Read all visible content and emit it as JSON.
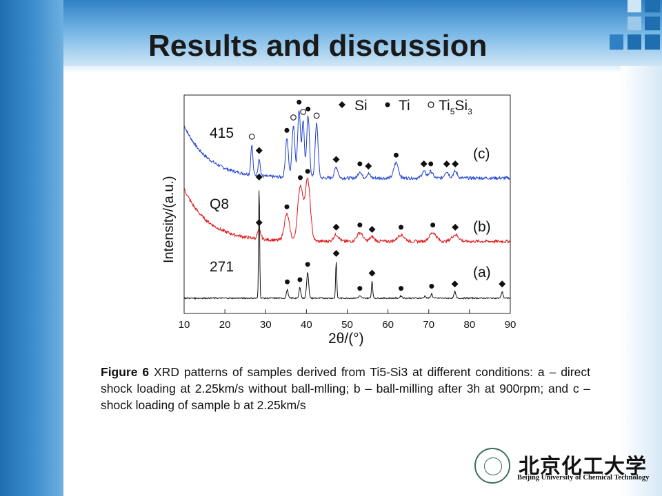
{
  "slide": {
    "title": "Results and discussion",
    "colors": {
      "accent": "#2f80c4",
      "square_dark": "#1f6fb0",
      "square_light": "#9cc8ea"
    }
  },
  "figure": {
    "ylabel": "Intensity/(a.u.)",
    "xlabel": "2θ/(°)",
    "legend": [
      {
        "marker": "diamond",
        "label": "Si"
      },
      {
        "marker": "dot",
        "label": "Ti"
      },
      {
        "marker": "circle",
        "label": "Ti5Si3"
      }
    ],
    "curve_labels": [
      "415",
      "Q8",
      "271"
    ],
    "curve_tags": [
      "(c)",
      "(b)",
      "(a)"
    ]
  },
  "chart_data": {
    "type": "line",
    "xlabel": "2θ/(°)",
    "ylabel": "Intensity/(a.u.)",
    "xlim": [
      10,
      90
    ],
    "x_ticks": [
      10,
      20,
      30,
      40,
      50,
      60,
      70,
      80,
      90
    ],
    "series": [
      {
        "name": "(c)",
        "sample_label": "415",
        "color": "#1f3fd0",
        "baseline": 0.62,
        "start_offset": 0.24,
        "peaks": [
          {
            "x": 26.6,
            "h": 0.14,
            "w": 0.35
          },
          {
            "x": 28.4,
            "h": 0.08,
            "w": 0.35
          },
          {
            "x": 35.2,
            "h": 0.18,
            "w": 0.5
          },
          {
            "x": 36.8,
            "h": 0.24,
            "w": 0.5
          },
          {
            "x": 38.2,
            "h": 0.31,
            "w": 0.5
          },
          {
            "x": 39.2,
            "h": 0.26,
            "w": 0.4
          },
          {
            "x": 40.4,
            "h": 0.28,
            "w": 0.5
          },
          {
            "x": 42.5,
            "h": 0.25,
            "w": 0.5
          },
          {
            "x": 47.3,
            "h": 0.05,
            "w": 0.6
          },
          {
            "x": 53.1,
            "h": 0.03,
            "w": 0.6
          },
          {
            "x": 55.2,
            "h": 0.02,
            "w": 0.6
          },
          {
            "x": 62.0,
            "h": 0.07,
            "w": 0.8
          },
          {
            "x": 68.8,
            "h": 0.03,
            "w": 0.7
          },
          {
            "x": 70.5,
            "h": 0.03,
            "w": 0.7
          },
          {
            "x": 74.4,
            "h": 0.03,
            "w": 0.7
          },
          {
            "x": 76.5,
            "h": 0.03,
            "w": 0.7
          }
        ],
        "markers": [
          {
            "x": 26.6,
            "type": "circle"
          },
          {
            "x": 28.4,
            "type": "diamond"
          },
          {
            "x": 35.2,
            "type": "dot"
          },
          {
            "x": 36.8,
            "type": "circle"
          },
          {
            "x": 38.2,
            "type": "dot"
          },
          {
            "x": 39.2,
            "type": "circle"
          },
          {
            "x": 40.4,
            "type": "dot"
          },
          {
            "x": 42.5,
            "type": "circle"
          },
          {
            "x": 47.3,
            "type": "diamond"
          },
          {
            "x": 53.1,
            "type": "dot"
          },
          {
            "x": 55.2,
            "type": "diamond"
          },
          {
            "x": 62.0,
            "type": "dot"
          },
          {
            "x": 68.8,
            "type": "diamond"
          },
          {
            "x": 70.5,
            "type": "dot"
          },
          {
            "x": 74.4,
            "type": "diamond"
          },
          {
            "x": 76.5,
            "type": "diamond"
          }
        ]
      },
      {
        "name": "(b)",
        "sample_label": "Q8",
        "color": "#e01414",
        "baseline": 0.33,
        "start_offset": 0.24,
        "peaks": [
          {
            "x": 28.4,
            "h": 0.04,
            "w": 0.6
          },
          {
            "x": 35.2,
            "h": 0.12,
            "w": 0.9
          },
          {
            "x": 38.5,
            "h": 0.25,
            "w": 0.9
          },
          {
            "x": 40.3,
            "h": 0.28,
            "w": 0.9
          },
          {
            "x": 47.3,
            "h": 0.03,
            "w": 0.9
          },
          {
            "x": 53.1,
            "h": 0.04,
            "w": 1.0
          },
          {
            "x": 56.1,
            "h": 0.02,
            "w": 0.8
          },
          {
            "x": 63.2,
            "h": 0.03,
            "w": 1.2
          },
          {
            "x": 71.0,
            "h": 0.04,
            "w": 1.2
          },
          {
            "x": 76.5,
            "h": 0.03,
            "w": 1.2
          }
        ],
        "markers": [
          {
            "x": 28.4,
            "type": "diamond"
          },
          {
            "x": 35.2,
            "type": "dot"
          },
          {
            "x": 38.5,
            "type": "dot"
          },
          {
            "x": 40.3,
            "type": "dot"
          },
          {
            "x": 47.3,
            "type": "diamond"
          },
          {
            "x": 53.1,
            "type": "dot"
          },
          {
            "x": 56.1,
            "type": "diamond"
          },
          {
            "x": 63.2,
            "type": "dot"
          },
          {
            "x": 71.0,
            "type": "dot"
          },
          {
            "x": 76.5,
            "type": "diamond"
          }
        ]
      },
      {
        "name": "(a)",
        "sample_label": "271",
        "color": "#111111",
        "baseline": 0.07,
        "start_offset": 0.0,
        "peaks": [
          {
            "x": 28.4,
            "h": 0.52,
            "w": 0.18
          },
          {
            "x": 35.3,
            "h": 0.04,
            "w": 0.3
          },
          {
            "x": 38.4,
            "h": 0.05,
            "w": 0.3
          },
          {
            "x": 40.3,
            "h": 0.12,
            "w": 0.35
          },
          {
            "x": 47.3,
            "h": 0.17,
            "w": 0.2
          },
          {
            "x": 53.1,
            "h": 0.01,
            "w": 0.4
          },
          {
            "x": 56.1,
            "h": 0.08,
            "w": 0.22
          },
          {
            "x": 63.2,
            "h": 0.01,
            "w": 0.4
          },
          {
            "x": 69.1,
            "h": 0.01,
            "w": 0.3
          },
          {
            "x": 70.7,
            "h": 0.02,
            "w": 0.3
          },
          {
            "x": 76.4,
            "h": 0.03,
            "w": 0.3
          },
          {
            "x": 88.0,
            "h": 0.03,
            "w": 0.3
          }
        ],
        "markers": [
          {
            "x": 28.4,
            "type": "diamond"
          },
          {
            "x": 35.3,
            "type": "dot"
          },
          {
            "x": 38.4,
            "type": "dot"
          },
          {
            "x": 40.3,
            "type": "dot"
          },
          {
            "x": 47.3,
            "type": "diamond"
          },
          {
            "x": 53.1,
            "type": "dot"
          },
          {
            "x": 56.1,
            "type": "diamond"
          },
          {
            "x": 63.2,
            "type": "dot"
          },
          {
            "x": 70.7,
            "type": "dot"
          },
          {
            "x": 76.4,
            "type": "diamond"
          },
          {
            "x": 88.0,
            "type": "diamond"
          }
        ]
      }
    ]
  },
  "caption": {
    "label": "Figure 6",
    "text": " XRD patterns of samples derived from Ti5-Si3 at different conditions: a – direct shock loading at 2.25km/s without ball-mlling; b – ball-milling after 3h at 900rpm; and c – shock loading of sample b at 2.25km/s"
  },
  "logo": {
    "chinese": "北京化工大学",
    "english": "Beijing University of Chemical Technology"
  }
}
